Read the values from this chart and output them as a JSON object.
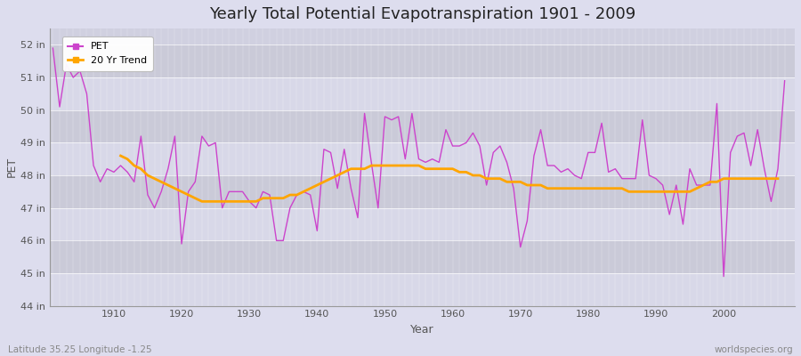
{
  "title": "Yearly Total Potential Evapotranspiration 1901 - 2009",
  "xlabel": "Year",
  "ylabel": "PET",
  "subtitle": "Latitude 35.25 Longitude -1.25",
  "watermark": "worldspecies.org",
  "pet_color": "#cc44cc",
  "trend_color": "#FFA500",
  "fig_background": "#e8e8e8",
  "plot_background_light": "#d8d8e8",
  "plot_background_dark": "#c8c8d8",
  "ylim": [
    44,
    52.5
  ],
  "yticks": [
    44,
    45,
    46,
    47,
    48,
    49,
    50,
    51,
    52
  ],
  "ytick_labels": [
    "44 in",
    "45 in",
    "46 in",
    "47 in",
    "48 in",
    "49 in",
    "50 in",
    "51 in",
    "52 in"
  ],
  "years": [
    1901,
    1902,
    1903,
    1904,
    1905,
    1906,
    1907,
    1908,
    1909,
    1910,
    1911,
    1912,
    1913,
    1914,
    1915,
    1916,
    1917,
    1918,
    1919,
    1920,
    1921,
    1922,
    1923,
    1924,
    1925,
    1926,
    1927,
    1928,
    1929,
    1930,
    1931,
    1932,
    1933,
    1934,
    1935,
    1936,
    1937,
    1938,
    1939,
    1940,
    1941,
    1942,
    1943,
    1944,
    1945,
    1946,
    1947,
    1948,
    1949,
    1950,
    1951,
    1952,
    1953,
    1954,
    1955,
    1956,
    1957,
    1958,
    1959,
    1960,
    1961,
    1962,
    1963,
    1964,
    1965,
    1966,
    1967,
    1968,
    1969,
    1970,
    1971,
    1972,
    1973,
    1974,
    1975,
    1976,
    1977,
    1978,
    1979,
    1980,
    1981,
    1982,
    1983,
    1984,
    1985,
    1986,
    1987,
    1988,
    1989,
    1990,
    1991,
    1992,
    1993,
    1994,
    1995,
    1996,
    1997,
    1998,
    1999,
    2000,
    2001,
    2002,
    2003,
    2004,
    2005,
    2006,
    2007,
    2008,
    2009
  ],
  "pet_values": [
    51.9,
    50.1,
    51.4,
    51.0,
    51.2,
    50.5,
    48.3,
    47.8,
    48.2,
    48.1,
    48.3,
    48.1,
    47.8,
    49.2,
    47.4,
    47.0,
    47.5,
    48.2,
    49.2,
    45.9,
    47.5,
    47.8,
    49.2,
    48.9,
    49.0,
    47.0,
    47.5,
    47.5,
    47.5,
    47.2,
    47.0,
    47.5,
    47.4,
    46.0,
    46.0,
    47.0,
    47.4,
    47.5,
    47.4,
    46.3,
    48.8,
    48.7,
    47.6,
    48.8,
    47.6,
    46.7,
    49.9,
    48.4,
    47.0,
    49.8,
    49.7,
    49.8,
    48.5,
    49.9,
    48.5,
    48.4,
    48.5,
    48.4,
    49.4,
    48.9,
    48.9,
    49.0,
    49.3,
    48.9,
    47.7,
    48.7,
    48.9,
    48.4,
    47.6,
    45.8,
    46.6,
    48.6,
    49.4,
    48.3,
    48.3,
    48.1,
    48.2,
    48.0,
    47.9,
    48.7,
    48.7,
    49.6,
    48.1,
    48.2,
    47.9,
    47.9,
    47.9,
    49.7,
    48.0,
    47.9,
    47.7,
    46.8,
    47.7,
    46.5,
    48.2,
    47.7,
    47.7,
    47.7,
    50.2,
    44.9,
    48.7,
    49.2,
    49.3,
    48.3,
    49.4,
    48.2,
    47.2,
    48.2,
    50.9
  ],
  "trend_values": [
    null,
    null,
    null,
    null,
    null,
    null,
    null,
    null,
    null,
    null,
    48.6,
    48.5,
    48.3,
    48.2,
    48.0,
    47.9,
    47.8,
    47.7,
    47.6,
    47.5,
    47.4,
    47.3,
    47.2,
    47.2,
    47.2,
    47.2,
    47.2,
    47.2,
    47.2,
    47.2,
    47.2,
    47.3,
    47.3,
    47.3,
    47.3,
    47.4,
    47.4,
    47.5,
    47.6,
    47.7,
    47.8,
    47.9,
    48.0,
    48.1,
    48.2,
    48.2,
    48.2,
    48.3,
    48.3,
    48.3,
    48.3,
    48.3,
    48.3,
    48.3,
    48.3,
    48.2,
    48.2,
    48.2,
    48.2,
    48.2,
    48.1,
    48.1,
    48.0,
    48.0,
    47.9,
    47.9,
    47.9,
    47.8,
    47.8,
    47.8,
    47.7,
    47.7,
    47.7,
    47.6,
    47.6,
    47.6,
    47.6,
    47.6,
    47.6,
    47.6,
    47.6,
    47.6,
    47.6,
    47.6,
    47.6,
    47.5,
    47.5,
    47.5,
    47.5,
    47.5,
    47.5,
    47.5,
    47.5,
    47.5,
    47.5,
    47.6,
    47.7,
    47.8,
    47.8,
    47.9,
    47.9,
    47.9,
    47.9,
    47.9,
    47.9,
    47.9,
    47.9,
    47.9
  ]
}
